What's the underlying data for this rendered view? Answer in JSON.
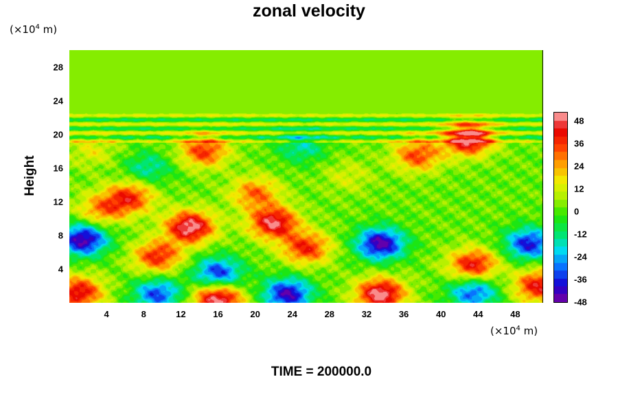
{
  "title": "zonal velocity",
  "y_unit": {
    "base": "(×10",
    "exp": "4",
    "rest": " m)"
  },
  "x_unit": {
    "base": "(×10",
    "exp": "4",
    "rest": " m)"
  },
  "ylabel": "Height",
  "footer": "TIME = 200000.0",
  "chart_data": {
    "type": "heatmap",
    "title": "zonal velocity",
    "xlabel": "",
    "ylabel": "Height",
    "x_ticks": [
      4,
      8,
      12,
      16,
      20,
      24,
      28,
      32,
      36,
      40,
      44,
      48
    ],
    "y_ticks": [
      4,
      8,
      12,
      16,
      20,
      24,
      28
    ],
    "xlim": [
      0,
      51
    ],
    "ylim": [
      0,
      30
    ],
    "colorbar": {
      "ticks": [
        48,
        36,
        24,
        12,
        0,
        -12,
        -24,
        -36,
        -48
      ],
      "range": [
        -50,
        50
      ],
      "colors": [
        "#7a00a0",
        "#1400d2",
        "#0a6cff",
        "#00dcf0",
        "#00e664",
        "#22e600",
        "#aaf000",
        "#f0f000",
        "#ffa000",
        "#ff3c00",
        "#e60000",
        "#ffb4b4"
      ]
    },
    "features": [
      {
        "x": 1.5,
        "y": 7.5,
        "value": -48
      },
      {
        "x": 33.5,
        "y": 7.0,
        "value": -48
      },
      {
        "x": 49.5,
        "y": 7.0,
        "value": -40
      },
      {
        "x": 16.0,
        "y": 3.5,
        "value": -38
      },
      {
        "x": 23.5,
        "y": 1.0,
        "value": -45
      },
      {
        "x": 9.5,
        "y": 1.0,
        "value": -35
      },
      {
        "x": 43.5,
        "y": 1.2,
        "value": -34
      },
      {
        "x": 33.5,
        "y": 1.0,
        "value": 50
      },
      {
        "x": 16.0,
        "y": 0.4,
        "value": 50
      },
      {
        "x": 1.0,
        "y": 1.2,
        "value": 42
      },
      {
        "x": 50.5,
        "y": 2.0,
        "value": 40
      },
      {
        "x": 43.5,
        "y": 4.5,
        "value": 40
      },
      {
        "x": 9.5,
        "y": 5.5,
        "value": 36
      },
      {
        "x": 13.0,
        "y": 9.0,
        "value": 50
      },
      {
        "x": 22.0,
        "y": 9.5,
        "value": 46
      },
      {
        "x": 25.5,
        "y": 6.5,
        "value": 36
      },
      {
        "x": 6.5,
        "y": 12.5,
        "value": 35
      },
      {
        "x": 14.5,
        "y": 18.0,
        "value": 34
      },
      {
        "x": 20.0,
        "y": 13.0,
        "value": 28
      },
      {
        "x": 37.5,
        "y": 17.5,
        "value": 32
      },
      {
        "x": 43.0,
        "y": 19.5,
        "value": 50
      },
      {
        "x": 3.5,
        "y": 11.0,
        "value": 25
      },
      {
        "x": 30.0,
        "y": 15.0,
        "value": 10
      },
      {
        "x": 8.5,
        "y": 16.0,
        "value": -18
      },
      {
        "x": 25.0,
        "y": 18.5,
        "value": -18
      },
      {
        "x": 2.5,
        "y": 18.0,
        "value": 12
      }
    ]
  }
}
